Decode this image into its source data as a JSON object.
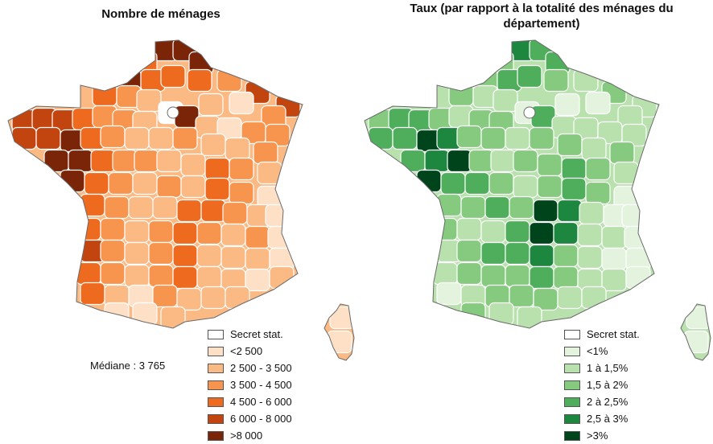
{
  "maps": {
    "left": {
      "title": "Nombre de ménages",
      "median": "Médiane : 3 765",
      "legend": [
        {
          "label": "Secret stat.",
          "color": "#ffffff"
        },
        {
          "label": "<2 500",
          "color": "#fde0c5"
        },
        {
          "label": "2 500 - 3 500",
          "color": "#fbb984"
        },
        {
          "label": "3 500 - 4 500",
          "color": "#f7944d"
        },
        {
          "label": "4 500 - 6 000",
          "color": "#ee6a1e"
        },
        {
          "label": "6 000 - 8 000",
          "color": "#c24510"
        },
        {
          "label": ">8 000",
          "color": "#7a2408"
        }
      ]
    },
    "right": {
      "title": "Taux (par rapport à la totalité des ménages du département)",
      "legend": [
        {
          "label": "Secret stat.",
          "color": "#ffffff"
        },
        {
          "label": " <1%",
          "color": "#e3f3de"
        },
        {
          "label": "1 à 1,5%",
          "color": "#b8e1ae"
        },
        {
          "label": "1,5 à 2%",
          "color": "#86ca7f"
        },
        {
          "label": "2 à 2,5%",
          "color": "#4fae5c"
        },
        {
          "label": "2,5 à 3%",
          "color": "#1d8740"
        },
        {
          "label": ">3%",
          "color": "#00441b"
        }
      ]
    }
  }
}
